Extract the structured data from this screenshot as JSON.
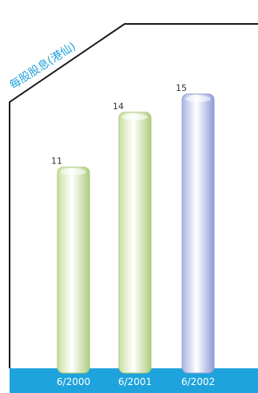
{
  "chart_data": {
    "type": "bar",
    "title": "每股股息(港仙)",
    "categories": [
      "6/2000",
      "6/2001",
      "6/2002"
    ],
    "values": [
      11,
      14,
      15
    ],
    "ylim": [
      0,
      15
    ],
    "grid": false,
    "legend": "none"
  },
  "colors": {
    "title": "#1fa3dc",
    "axis_band": "#1fa3dc",
    "frame": "#1a1a1a",
    "bar_green": "#b9d68a",
    "bar_blue": "#9aa8dc"
  }
}
